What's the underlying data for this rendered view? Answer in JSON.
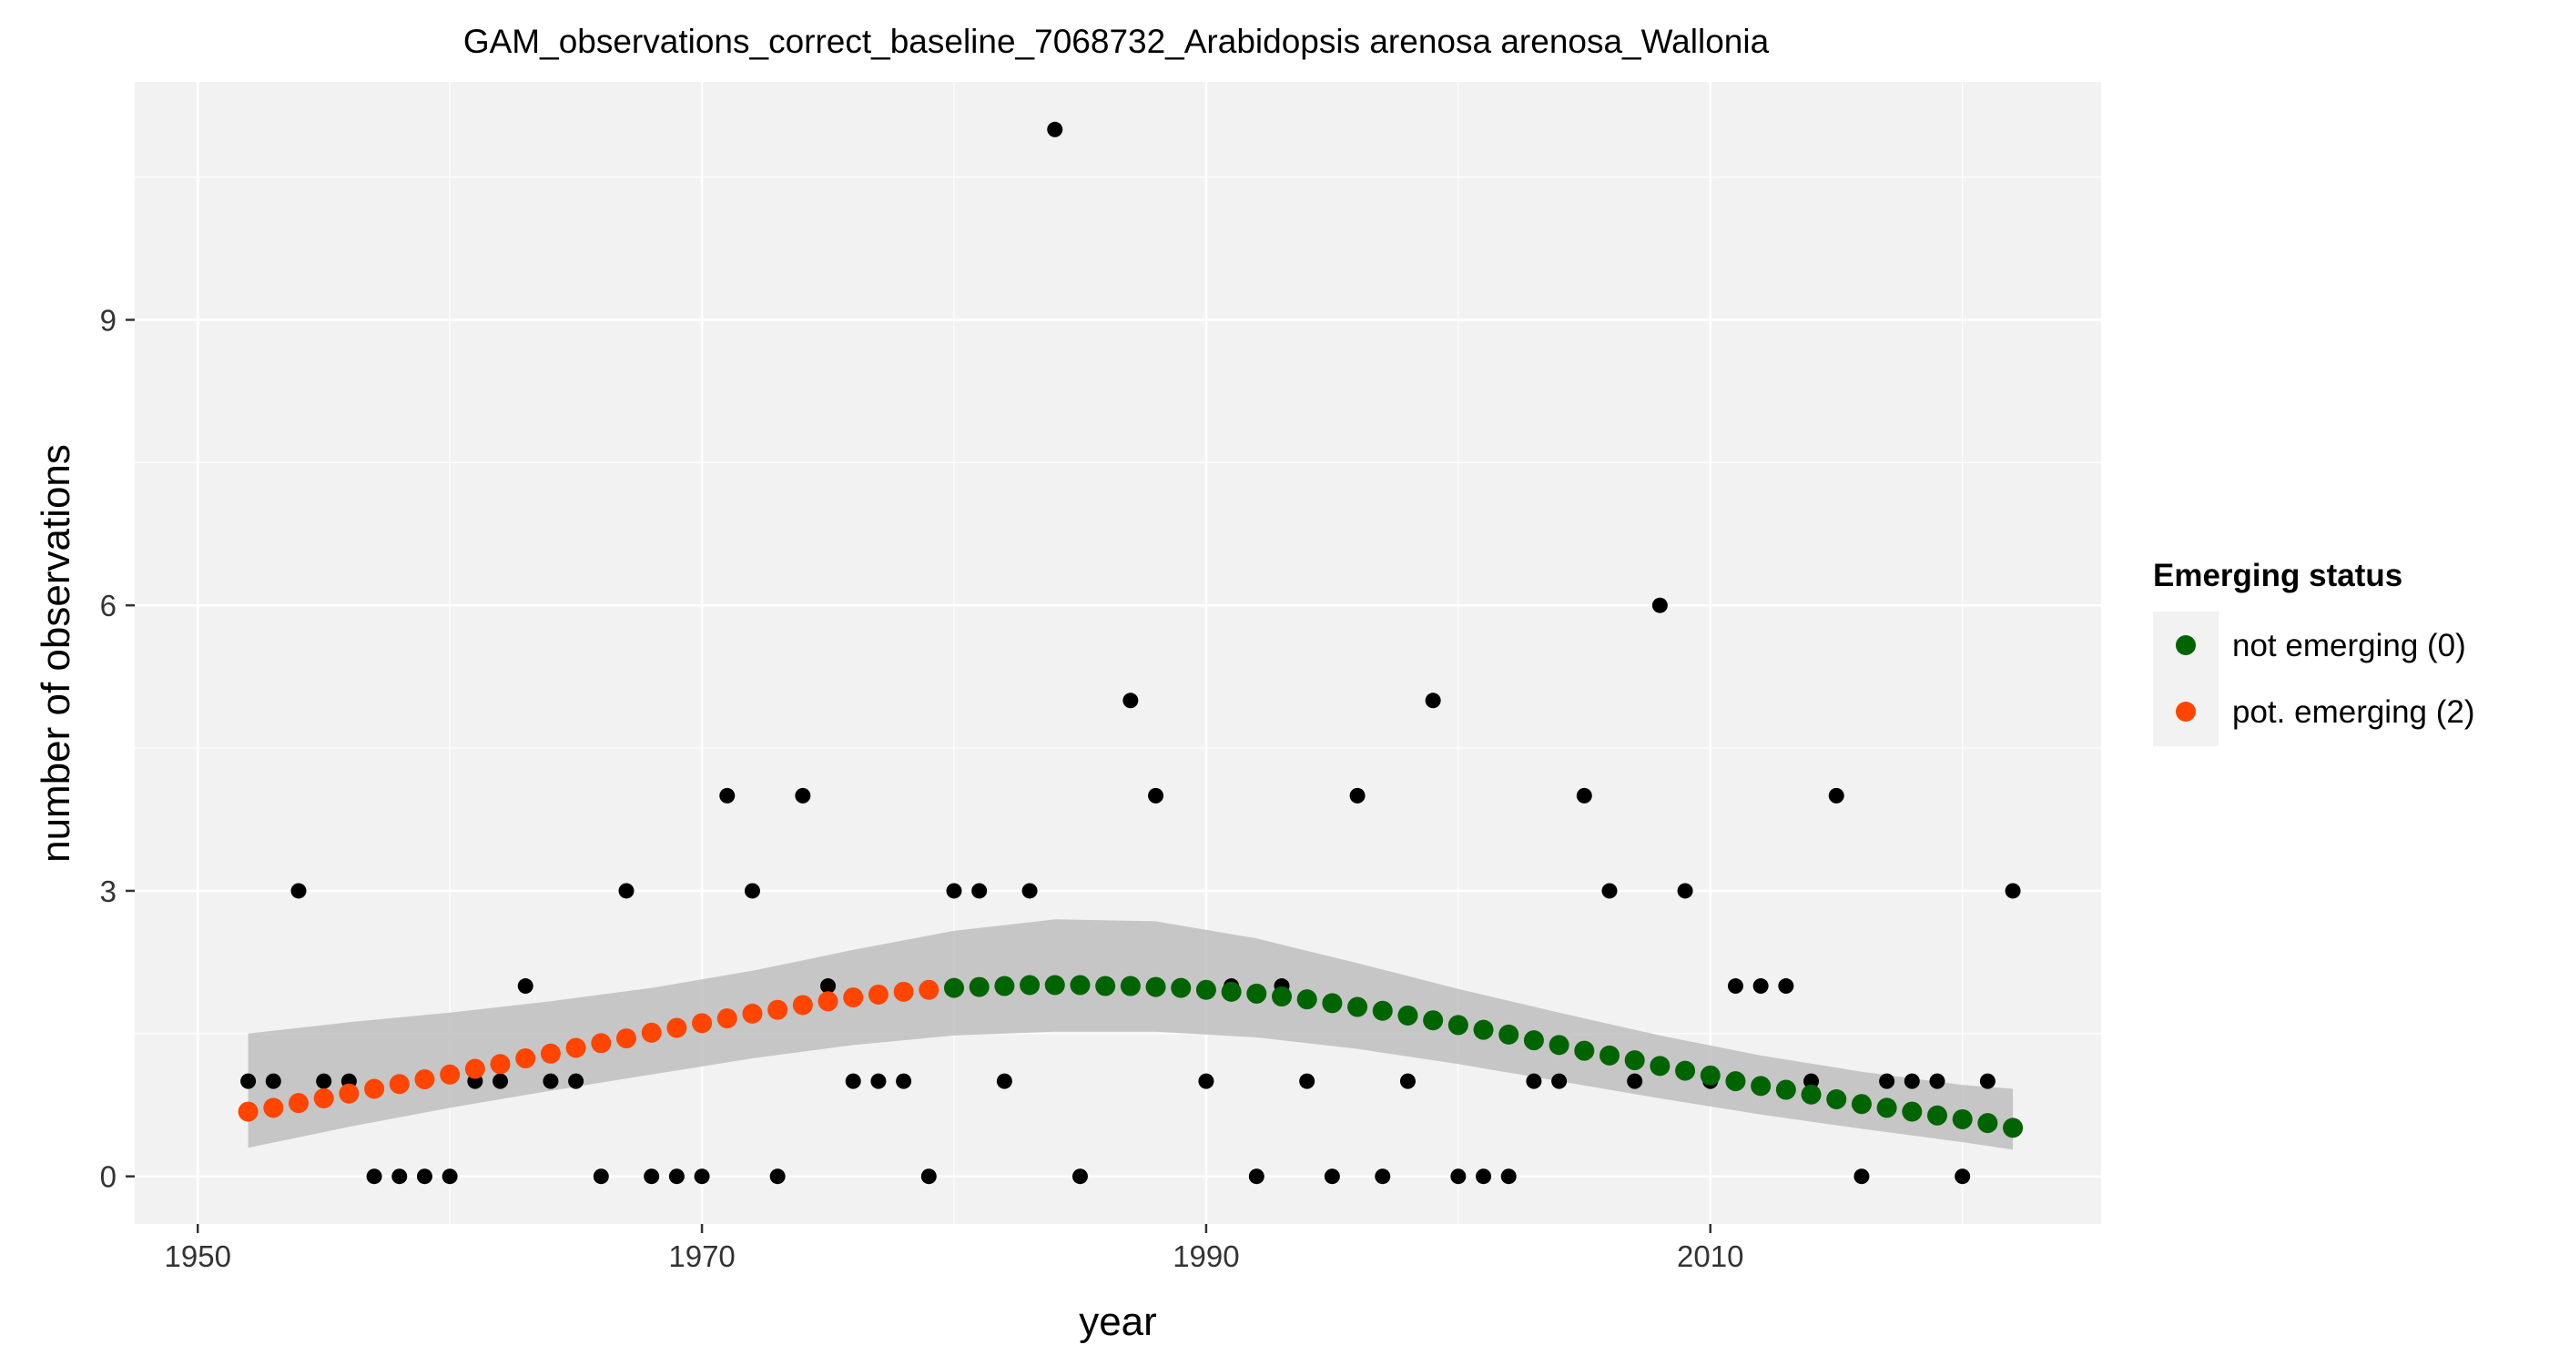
{
  "chart_data": {
    "type": "scatter",
    "title": "GAM_observations_correct_baseline_7068732_Arabidopsis arenosa arenosa_Wallonia",
    "xlabel": "year",
    "ylabel": "number of observations",
    "xlim": [
      1947.5,
      2025.5
    ],
    "ylim": [
      -0.5,
      11.5
    ],
    "x_ticks": [
      1950,
      1970,
      1990,
      2010
    ],
    "y_ticks": [
      0,
      3,
      6,
      9
    ],
    "x_tick_labels": [
      "1950",
      "1970",
      "1990",
      "2010"
    ],
    "y_tick_labels": [
      "0",
      "3",
      "6",
      "9"
    ],
    "grid": true,
    "legend": {
      "title": "Emerging status",
      "placement": "right",
      "entries": [
        {
          "label": "not emerging (0)",
          "color": "#006400"
        },
        {
          "label": "pot. emerging (2)",
          "color": "#FF4500"
        }
      ]
    },
    "observations": {
      "color": "#000000",
      "x": [
        1952,
        1953,
        1954,
        1955,
        1956,
        1957,
        1958,
        1959,
        1960,
        1961,
        1962,
        1963,
        1964,
        1965,
        1966,
        1967,
        1968,
        1969,
        1970,
        1971,
        1972,
        1973,
        1974,
        1975,
        1976,
        1977,
        1978,
        1979,
        1980,
        1981,
        1982,
        1983,
        1984,
        1985,
        1986,
        1987,
        1988,
        1989,
        1990,
        1991,
        1992,
        1993,
        1994,
        1995,
        1996,
        1997,
        1998,
        1999,
        2000,
        2001,
        2002,
        2003,
        2004,
        2005,
        2006,
        2007,
        2008,
        2009,
        2010,
        2011,
        2012,
        2013,
        2014,
        2015,
        2016,
        2017,
        2018,
        2019,
        2020,
        2021,
        2022
      ],
      "y": [
        1,
        1,
        3,
        1,
        1,
        0,
        0,
        0,
        0,
        1,
        1,
        2,
        1,
        1,
        0,
        3,
        0,
        0,
        0,
        4,
        3,
        0,
        4,
        2,
        1,
        1,
        1,
        0,
        3,
        3,
        1,
        3,
        11,
        0,
        2,
        5,
        4,
        2,
        1,
        2,
        0,
        2,
        1,
        0,
        4,
        0,
        1,
        5,
        0,
        0,
        0,
        1,
        1,
        4,
        3,
        1,
        6,
        3,
        1,
        2,
        2,
        2,
        1,
        4,
        0,
        1,
        1,
        1,
        0,
        1,
        3
      ]
    },
    "series": [
      {
        "name": "pot. emerging (2)",
        "color": "#FF4500",
        "x": [
          1952,
          1953,
          1954,
          1955,
          1956,
          1957,
          1958,
          1959,
          1960,
          1961,
          1962,
          1963,
          1964,
          1965,
          1966,
          1967,
          1968,
          1969,
          1970,
          1971,
          1972,
          1973,
          1974,
          1975,
          1976,
          1977,
          1978,
          1979
        ],
        "y": [
          0.68,
          0.72,
          0.77,
          0.82,
          0.87,
          0.92,
          0.97,
          1.02,
          1.07,
          1.13,
          1.18,
          1.24,
          1.29,
          1.35,
          1.4,
          1.45,
          1.51,
          1.56,
          1.61,
          1.66,
          1.71,
          1.75,
          1.8,
          1.84,
          1.88,
          1.91,
          1.94,
          1.96
        ]
      },
      {
        "name": "not emerging (0)",
        "color": "#006400",
        "x": [
          1980,
          1981,
          1982,
          1983,
          1984,
          1985,
          1986,
          1987,
          1988,
          1989,
          1990,
          1991,
          1992,
          1993,
          1994,
          1995,
          1996,
          1997,
          1998,
          1999,
          2000,
          2001,
          2002,
          2003,
          2004,
          2005,
          2006,
          2007,
          2008,
          2009,
          2010,
          2011,
          2012,
          2013,
          2014,
          2015,
          2016,
          2017,
          2018,
          2019,
          2020,
          2021,
          2022
        ],
        "y": [
          1.98,
          1.99,
          2.0,
          2.01,
          2.01,
          2.01,
          2.0,
          2.0,
          1.99,
          1.98,
          1.96,
          1.94,
          1.92,
          1.89,
          1.86,
          1.82,
          1.78,
          1.74,
          1.69,
          1.64,
          1.59,
          1.54,
          1.49,
          1.43,
          1.38,
          1.32,
          1.27,
          1.22,
          1.16,
          1.11,
          1.06,
          1.0,
          0.95,
          0.91,
          0.86,
          0.81,
          0.76,
          0.72,
          0.68,
          0.64,
          0.6,
          0.56,
          0.51
        ]
      }
    ],
    "confidence_band": {
      "color": "#BEBEBE",
      "x": [
        1952,
        1956,
        1960,
        1964,
        1968,
        1972,
        1976,
        1980,
        1984,
        1988,
        1992,
        1996,
        2000,
        2004,
        2008,
        2012,
        2016,
        2020,
        2022
      ],
      "lower": [
        0.3,
        0.52,
        0.72,
        0.9,
        1.07,
        1.24,
        1.38,
        1.48,
        1.52,
        1.52,
        1.46,
        1.34,
        1.18,
        1.0,
        0.82,
        0.65,
        0.5,
        0.36,
        0.28
      ],
      "upper": [
        1.5,
        1.62,
        1.72,
        1.84,
        1.98,
        2.16,
        2.38,
        2.58,
        2.7,
        2.68,
        2.5,
        2.24,
        1.97,
        1.72,
        1.48,
        1.27,
        1.1,
        0.96,
        0.92
      ]
    }
  }
}
